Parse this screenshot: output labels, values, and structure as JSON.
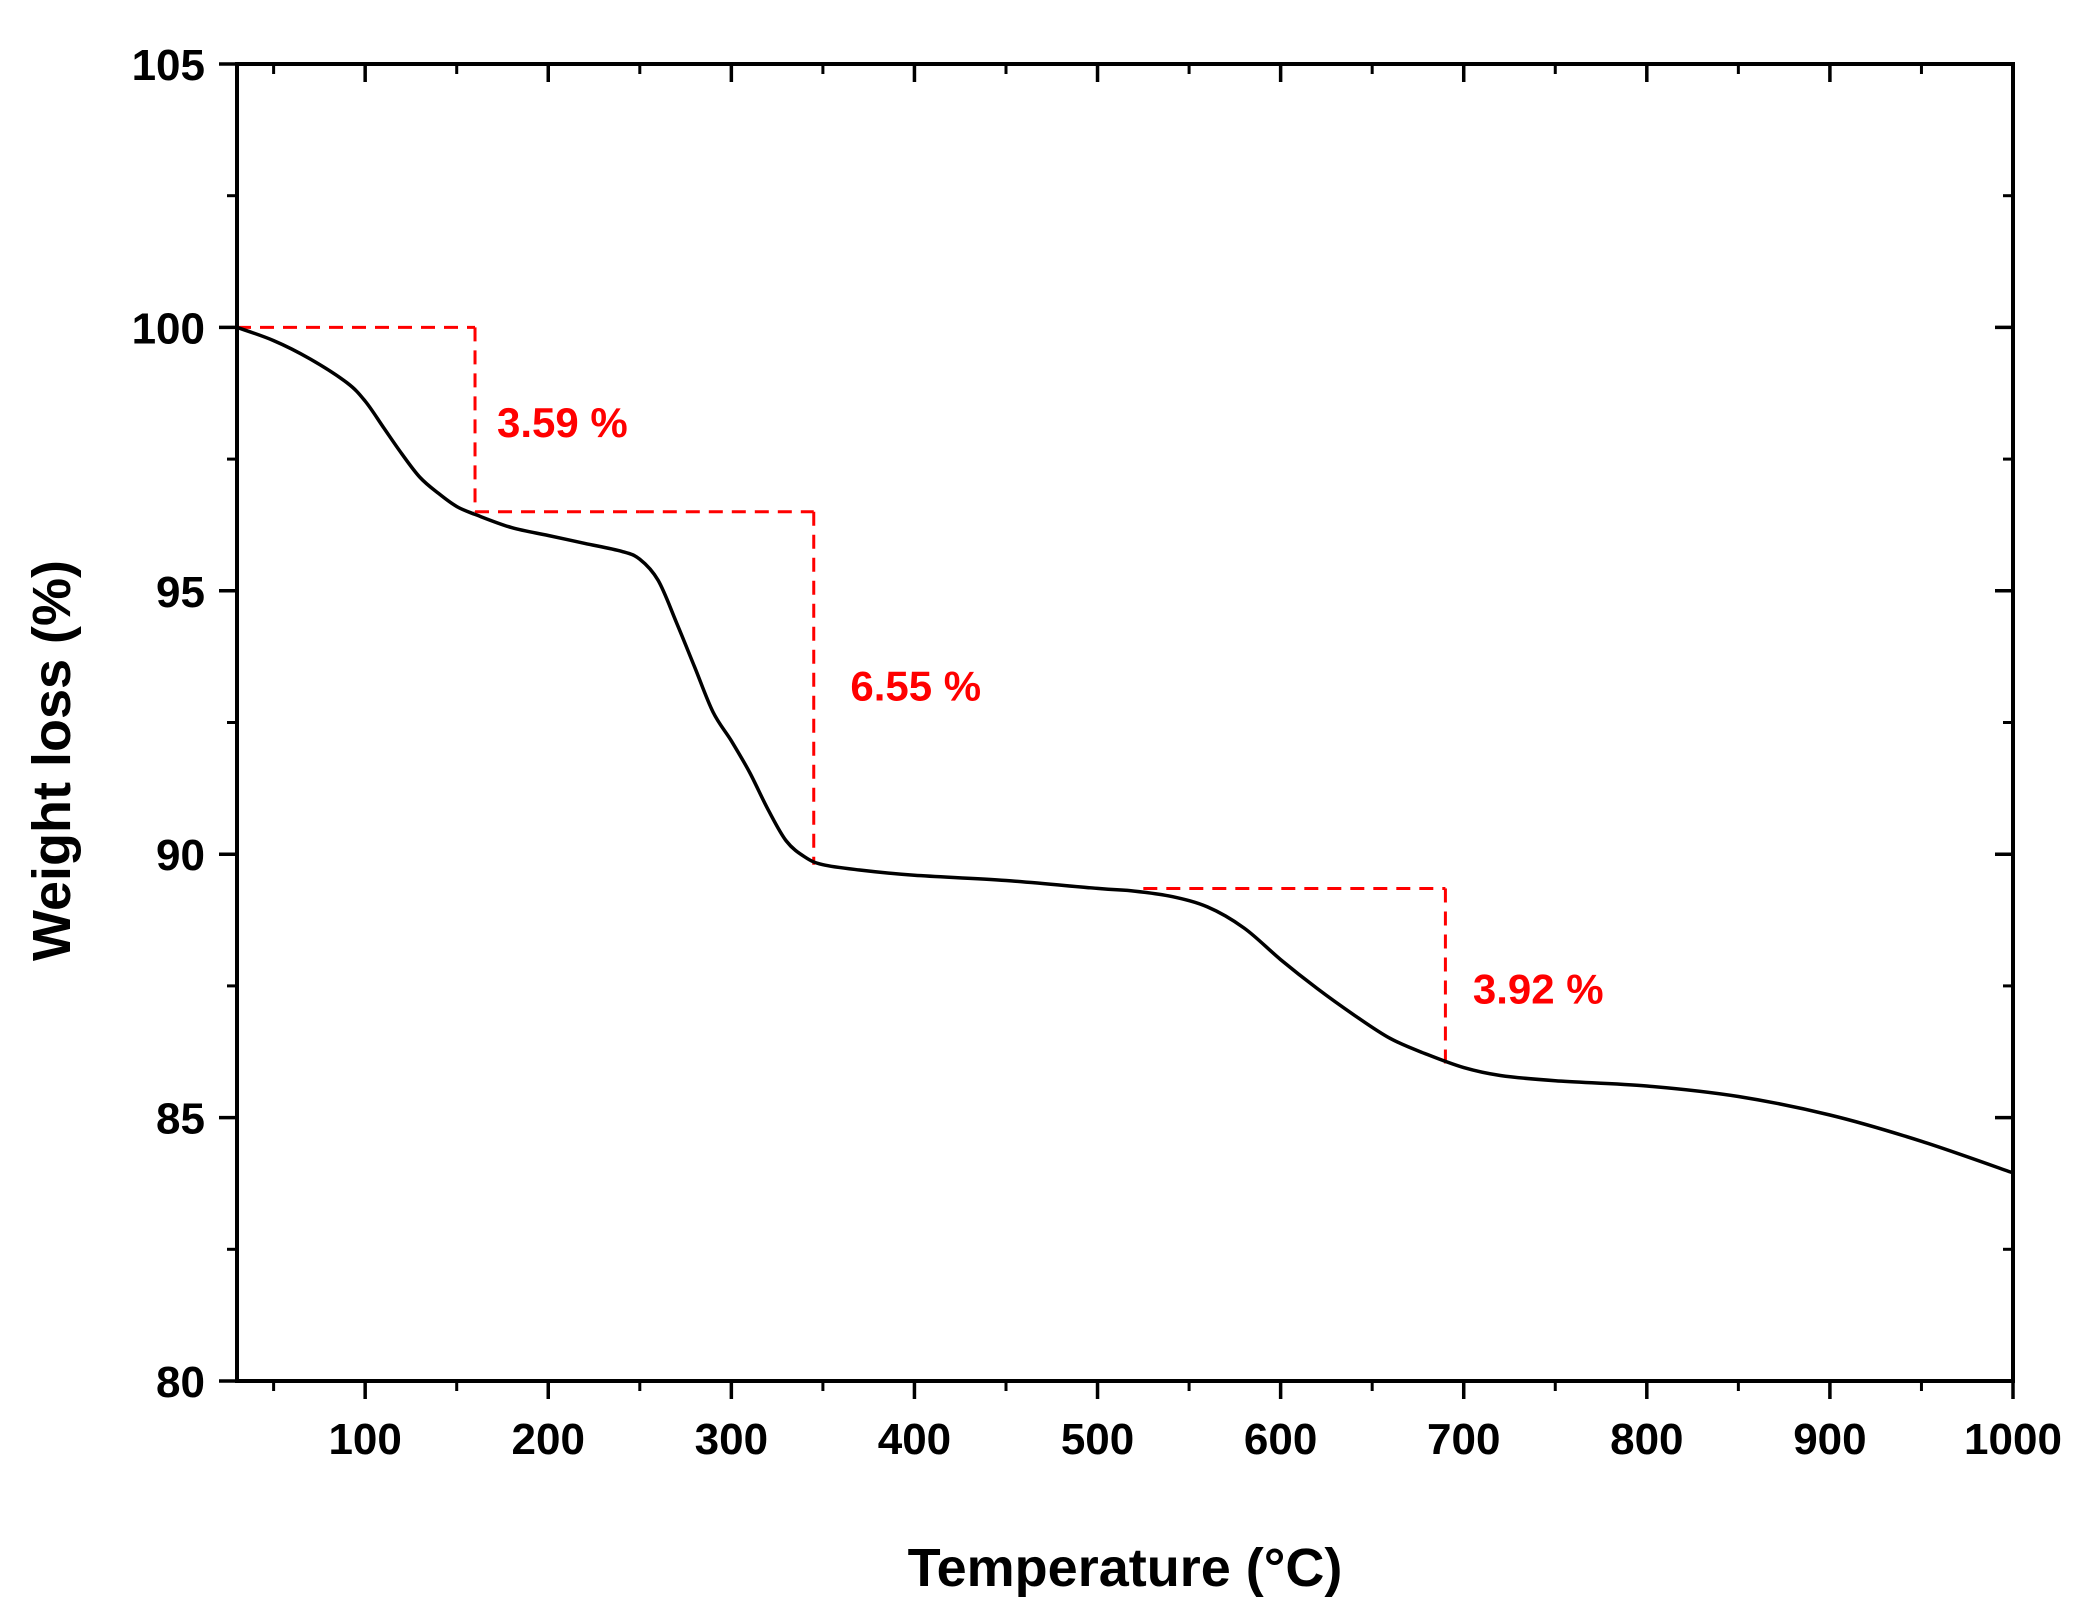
{
  "chart_data": {
    "type": "line",
    "xlabel": "Temperature (°C)",
    "ylabel": "Weight loss (%)",
    "xlim": [
      30,
      1000
    ],
    "ylim": [
      80,
      105
    ],
    "x_ticks": [
      100,
      200,
      300,
      400,
      500,
      600,
      700,
      800,
      900,
      1000
    ],
    "y_ticks": [
      80,
      85,
      90,
      95,
      100,
      105
    ],
    "x_tick_labels": [
      "100",
      "200",
      "300",
      "400",
      "500",
      "600",
      "700",
      "800",
      "900",
      "1000"
    ],
    "y_tick_labels": [
      "80",
      "85",
      "90",
      "95",
      "100",
      "105"
    ],
    "grid": false,
    "legend": "none",
    "line_color": "#000000",
    "annotation_color": "#ff0000",
    "series": [
      {
        "x": [
          30,
          50,
          70,
          90,
          100,
          110,
          120,
          130,
          140,
          150,
          160,
          180,
          200,
          220,
          240,
          250,
          260,
          270,
          280,
          290,
          300,
          310,
          320,
          330,
          340,
          350,
          370,
          400,
          450,
          500,
          520,
          540,
          560,
          580,
          600,
          620,
          640,
          660,
          680,
          700,
          720,
          750,
          800,
          850,
          900,
          950,
          1000
        ],
        "y": [
          100.0,
          99.75,
          99.4,
          98.95,
          98.6,
          98.1,
          97.6,
          97.15,
          96.85,
          96.6,
          96.45,
          96.2,
          96.05,
          95.9,
          95.75,
          95.6,
          95.2,
          94.4,
          93.55,
          92.7,
          92.15,
          91.55,
          90.85,
          90.25,
          89.95,
          89.8,
          89.7,
          89.6,
          89.5,
          89.35,
          89.3,
          89.2,
          89.0,
          88.6,
          88.0,
          87.45,
          86.95,
          86.5,
          86.2,
          85.95,
          85.8,
          85.7,
          85.6,
          85.4,
          85.05,
          84.55,
          83.95
        ]
      }
    ],
    "annotations": [
      {
        "text": "3.59 %",
        "x_start": 30,
        "x_drop": 160,
        "x_end": 250,
        "y_top": 100.0,
        "y_bottom": 96.5,
        "label_x": 172,
        "label_y": 98.2
      },
      {
        "text": "6.55 %",
        "x_start": 250,
        "x_drop": 345,
        "x_end": 345,
        "y_top": 96.5,
        "y_bottom": 89.8,
        "label_x": 365,
        "label_y": 93.2
      },
      {
        "text": "3.92 %",
        "x_start": 525,
        "x_drop": 690,
        "x_end": 690,
        "y_top": 89.35,
        "y_bottom": 85.9,
        "label_x": 705,
        "label_y": 87.45
      }
    ]
  }
}
